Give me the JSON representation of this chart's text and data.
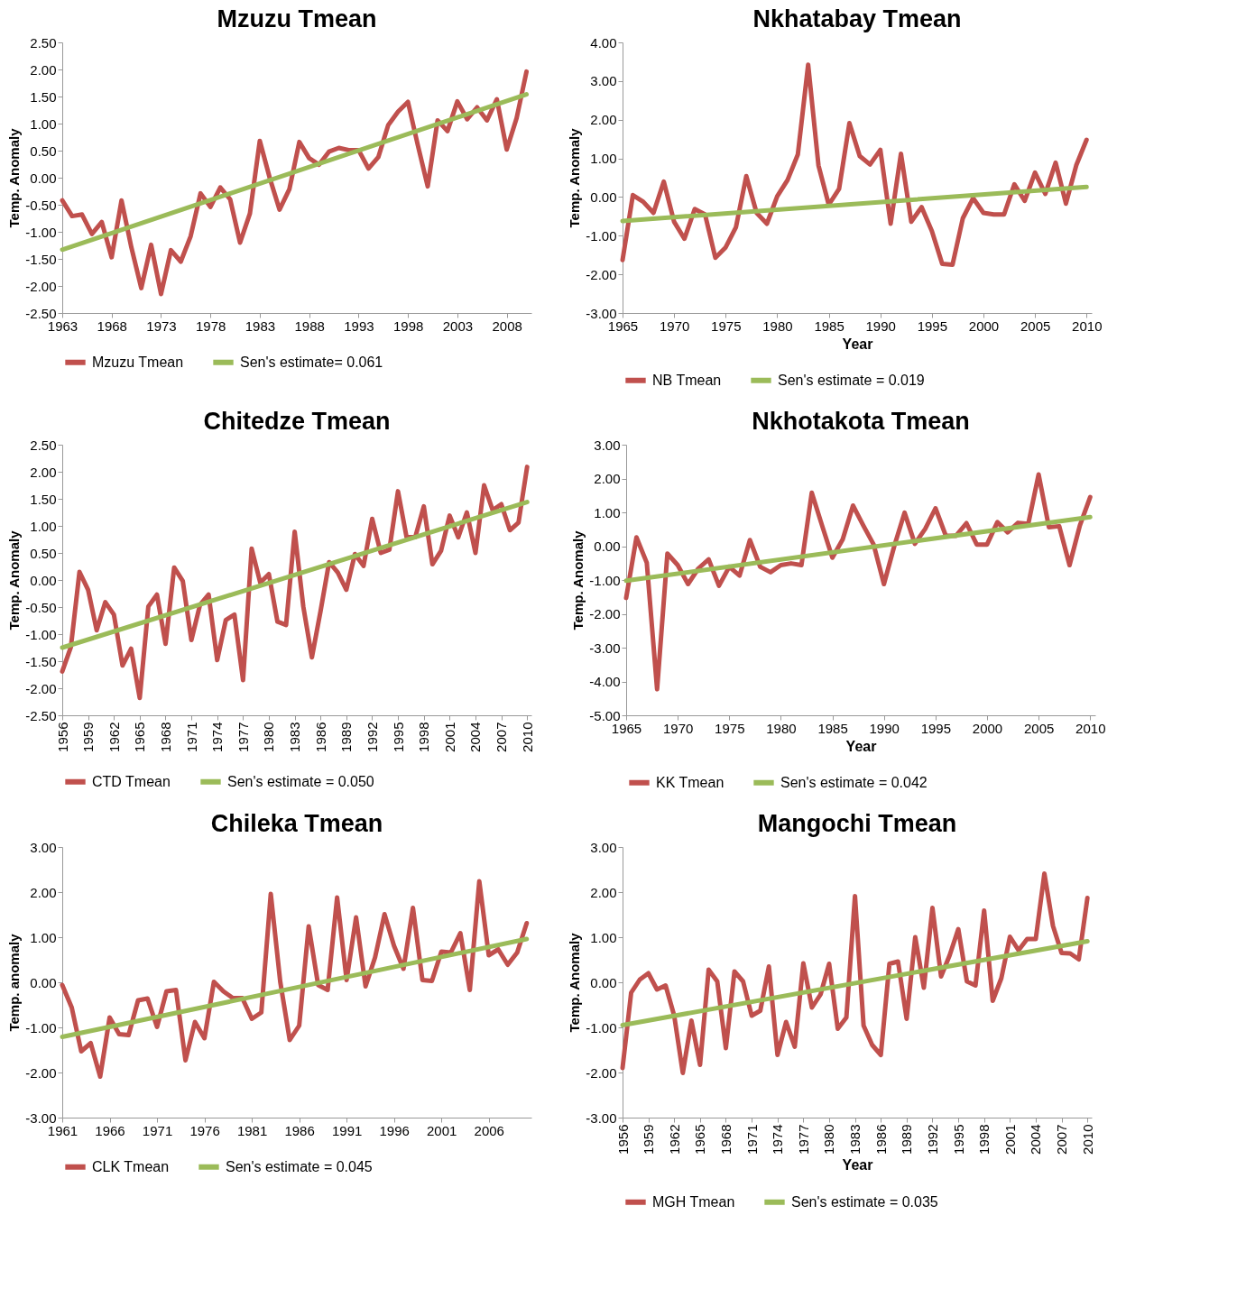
{
  "chart_data": [
    {
      "type": "line",
      "title": "Mzuzu Tmean",
      "ylabel": "Temp. Anomaly",
      "legend": "bottom",
      "grid": false,
      "x": [
        1963,
        1964,
        1965,
        1966,
        1967,
        1968,
        1969,
        1970,
        1971,
        1972,
        1973,
        1974,
        1975,
        1976,
        1977,
        1978,
        1979,
        1980,
        1981,
        1982,
        1983,
        1984,
        1985,
        1986,
        1987,
        1988,
        1989,
        1990,
        1991,
        1992,
        1993,
        1994,
        1995,
        1996,
        1997,
        1998,
        1999,
        2000,
        2001,
        2002,
        2003,
        2004,
        2005,
        2006,
        2007,
        2008,
        2009,
        2010
      ],
      "xlim": [
        1963,
        2010.5
      ],
      "xticks": [
        1963,
        1968,
        1973,
        1978,
        1983,
        1988,
        1993,
        1998,
        2003,
        2008
      ],
      "ylim": [
        -2.5,
        2.5
      ],
      "yticks": [
        {
          "value": -2.5,
          "label": "-2.50"
        },
        {
          "value": -2,
          "label": "-2.00"
        },
        {
          "value": -1.5,
          "label": "-1.50"
        },
        {
          "value": -1,
          "label": "-1.00"
        },
        {
          "value": -0.5,
          "label": "-0.50"
        },
        {
          "value": 0,
          "label": "0.00"
        },
        {
          "value": 0.5,
          "label": "0.50"
        },
        {
          "value": 1,
          "label": "1.00"
        },
        {
          "value": 1.5,
          "label": "1.50"
        },
        {
          "value": 2,
          "label": "2.00"
        },
        {
          "value": 2.5,
          "label": "2.50"
        }
      ],
      "series": [
        {
          "name": "Mzuzu Tmean",
          "color": "#c0504d",
          "values": [
            -0.42,
            -0.71,
            -0.68,
            -1.04,
            -0.82,
            -1.47,
            -0.42,
            -1.29,
            -2.04,
            -1.24,
            -2.15,
            -1.34,
            -1.55,
            -1.08,
            -0.29,
            -0.54,
            -0.18,
            -0.4,
            -1.2,
            -0.66,
            0.68,
            0.0,
            -0.59,
            -0.21,
            0.66,
            0.36,
            0.24,
            0.48,
            0.55,
            0.51,
            0.51,
            0.17,
            0.38,
            0.97,
            1.22,
            1.4,
            0.6,
            -0.16,
            1.06,
            0.86,
            1.41,
            1.08,
            1.3,
            1.06,
            1.45,
            0.52,
            1.1,
            1.96
          ]
        },
        {
          "name": "Sen's estimate= 0.061",
          "color": "#9bbb59",
          "type": "line",
          "x": [
            1963,
            2010
          ],
          "values": [
            -1.33,
            1.54
          ]
        }
      ]
    },
    {
      "type": "line",
      "title": "Nkhatabay Tmean",
      "ylabel": "Temp. Anomaly",
      "xlabel": "Year",
      "legend": "bottom",
      "grid": false,
      "x": [
        1965,
        1966,
        1967,
        1968,
        1969,
        1970,
        1971,
        1972,
        1973,
        1974,
        1975,
        1976,
        1977,
        1978,
        1979,
        1980,
        1981,
        1982,
        1983,
        1984,
        1985,
        1986,
        1987,
        1988,
        1989,
        1990,
        1991,
        1992,
        1993,
        1994,
        1995,
        1996,
        1997,
        1998,
        1999,
        2000,
        2001,
        2002,
        2003,
        2004,
        2005,
        2006,
        2007,
        2008,
        2009,
        2010
      ],
      "xlim": [
        1965,
        2010.5
      ],
      "xticks": [
        1965,
        1970,
        1975,
        1980,
        1985,
        1990,
        1995,
        2000,
        2005,
        2010
      ],
      "ylim": [
        -3,
        4
      ],
      "yticks": [
        {
          "value": -3,
          "label": "-3.00"
        },
        {
          "value": -2,
          "label": "-2.00"
        },
        {
          "value": -1,
          "label": "-1.00"
        },
        {
          "value": 0,
          "label": "0.00"
        },
        {
          "value": 1,
          "label": "1.00"
        },
        {
          "value": 2,
          "label": "2.00"
        },
        {
          "value": 3,
          "label": "3.00"
        },
        {
          "value": 4,
          "label": "4.00"
        }
      ],
      "series": [
        {
          "name": "NB Tmean",
          "color": "#c0504d",
          "values": [
            -1.63,
            0.05,
            -0.12,
            -0.41,
            0.4,
            -0.64,
            -1.08,
            -0.31,
            -0.45,
            -1.57,
            -1.3,
            -0.78,
            0.54,
            -0.41,
            -0.69,
            0.02,
            0.44,
            1.1,
            3.42,
            0.82,
            -0.2,
            0.21,
            1.91,
            1.06,
            0.84,
            1.22,
            -0.69,
            1.12,
            -0.64,
            -0.26,
            -0.88,
            -1.73,
            -1.75,
            -0.55,
            -0.03,
            -0.41,
            -0.45,
            -0.45,
            0.33,
            -0.1,
            0.63,
            0.08,
            0.89,
            -0.17,
            0.82,
            1.48
          ]
        },
        {
          "name": "Sen's estimate = 0.019",
          "color": "#9bbb59",
          "type": "line",
          "x": [
            1965,
            2010
          ],
          "values": [
            -0.62,
            0.26
          ]
        }
      ]
    },
    {
      "type": "line",
      "title": "Chitedze Tmean",
      "ylabel": "Temp. Anomaly",
      "legend": "bottom",
      "grid": false,
      "x": [
        1956,
        1957,
        1958,
        1959,
        1960,
        1961,
        1962,
        1963,
        1964,
        1965,
        1966,
        1967,
        1968,
        1969,
        1970,
        1971,
        1972,
        1973,
        1974,
        1975,
        1976,
        1977,
        1978,
        1979,
        1980,
        1981,
        1982,
        1983,
        1984,
        1985,
        1986,
        1987,
        1988,
        1989,
        1990,
        1991,
        1992,
        1993,
        1994,
        1995,
        1996,
        1997,
        1998,
        1999,
        2000,
        2001,
        2002,
        2003,
        2004,
        2005,
        2006,
        2007,
        2008,
        2009,
        2010
      ],
      "xlim": [
        1956,
        2010.5
      ],
      "xticks": [
        1956,
        1959,
        1962,
        1965,
        1968,
        1971,
        1974,
        1977,
        1980,
        1983,
        1986,
        1989,
        1992,
        1995,
        1998,
        2001,
        2004,
        2007,
        2010
      ],
      "ylim": [
        -2.5,
        2.5
      ],
      "yticks": [
        {
          "value": -2.5,
          "label": "-2.50"
        },
        {
          "value": -2,
          "label": "-2.00"
        },
        {
          "value": -1.5,
          "label": "-1.50"
        },
        {
          "value": -1,
          "label": "-1.00"
        },
        {
          "value": -0.5,
          "label": "-0.50"
        },
        {
          "value": 0,
          "label": "0.00"
        },
        {
          "value": 0.5,
          "label": "0.50"
        },
        {
          "value": 1,
          "label": "1.00"
        },
        {
          "value": 1.5,
          "label": "1.50"
        },
        {
          "value": 2,
          "label": "2.00"
        },
        {
          "value": 2.5,
          "label": "2.50"
        }
      ],
      "series": [
        {
          "name": "CTD Tmean",
          "color": "#c0504d",
          "values": [
            -1.69,
            -1.24,
            0.15,
            -0.18,
            -0.93,
            -0.41,
            -0.64,
            -1.58,
            -1.27,
            -2.18,
            -0.49,
            -0.27,
            -1.18,
            0.23,
            -0.02,
            -1.11,
            -0.46,
            -0.27,
            -1.48,
            -0.74,
            -0.64,
            -1.85,
            0.58,
            -0.05,
            0.11,
            -0.77,
            -0.83,
            0.89,
            -0.49,
            -1.43,
            -0.58,
            0.33,
            0.14,
            -0.18,
            0.48,
            0.26,
            1.13,
            0.5,
            0.56,
            1.64,
            0.79,
            0.79,
            1.36,
            0.29,
            0.54,
            1.19,
            0.79,
            1.25,
            0.5,
            1.75,
            1.29,
            1.4,
            0.92,
            1.06,
            2.09
          ]
        },
        {
          "name": "Sen's estimate = 0.050",
          "color": "#9bbb59",
          "type": "line",
          "x": [
            1956,
            2010
          ],
          "values": [
            -1.25,
            1.44
          ]
        }
      ]
    },
    {
      "type": "line",
      "title": "Nkhotakota Tmean",
      "ylabel": "Temp. Anomaly",
      "xlabel": "Year",
      "legend": "bottom",
      "grid": false,
      "x": [
        1965,
        1966,
        1967,
        1968,
        1969,
        1970,
        1971,
        1972,
        1973,
        1974,
        1975,
        1976,
        1977,
        1978,
        1979,
        1980,
        1981,
        1982,
        1983,
        1984,
        1985,
        1986,
        1987,
        1988,
        1989,
        1990,
        1991,
        1992,
        1993,
        1994,
        1995,
        1996,
        1997,
        1998,
        1999,
        2000,
        2001,
        2002,
        2003,
        2004,
        2005,
        2006,
        2007,
        2008,
        2009,
        2010
      ],
      "xlim": [
        1965,
        2010.5
      ],
      "xticks": [
        1965,
        1970,
        1975,
        1980,
        1985,
        1990,
        1995,
        2000,
        2005,
        2010
      ],
      "ylim": [
        -5,
        3
      ],
      "yticks": [
        {
          "value": -5,
          "label": "-5.00"
        },
        {
          "value": -4,
          "label": "-4.00"
        },
        {
          "value": -3,
          "label": "-3.00"
        },
        {
          "value": -2,
          "label": "-2.00"
        },
        {
          "value": -1,
          "label": "-1.00"
        },
        {
          "value": 0,
          "label": "0.00"
        },
        {
          "value": 1,
          "label": "1.00"
        },
        {
          "value": 2,
          "label": "2.00"
        },
        {
          "value": 3,
          "label": "3.00"
        }
      ],
      "series": [
        {
          "name": "KK Tmean",
          "color": "#c0504d",
          "values": [
            -1.53,
            0.26,
            -0.49,
            -4.23,
            -0.22,
            -0.56,
            -1.12,
            -0.66,
            -0.39,
            -1.17,
            -0.61,
            -0.87,
            0.18,
            -0.61,
            -0.77,
            -0.56,
            -0.51,
            -0.56,
            1.58,
            0.61,
            -0.34,
            0.2,
            1.2,
            0.61,
            0.05,
            -1.12,
            0.0,
            0.99,
            0.07,
            0.51,
            1.12,
            0.31,
            0.31,
            0.68,
            0.05,
            0.05,
            0.71,
            0.41,
            0.69,
            0.66,
            2.12,
            0.56,
            0.59,
            -0.56,
            0.61,
            1.45
          ]
        },
        {
          "name": "Sen's estimate = 0.042",
          "color": "#9bbb59",
          "type": "line",
          "x": [
            1965,
            2010
          ],
          "values": [
            -1.02,
            0.86
          ]
        }
      ]
    },
    {
      "type": "line",
      "title": "Chileka Tmean",
      "ylabel": "Temp. anomaly",
      "legend": "bottom",
      "grid": false,
      "x": [
        1961,
        1962,
        1963,
        1964,
        1965,
        1966,
        1967,
        1968,
        1969,
        1970,
        1971,
        1972,
        1973,
        1974,
        1975,
        1976,
        1977,
        1978,
        1979,
        1980,
        1981,
        1982,
        1983,
        1984,
        1985,
        1986,
        1987,
        1988,
        1989,
        1990,
        1991,
        1992,
        1993,
        1994,
        1995,
        1996,
        1997,
        1998,
        1999,
        2000,
        2001,
        2002,
        2003,
        2004,
        2005,
        2006,
        2007,
        2008,
        2009,
        2010
      ],
      "xlim": [
        1961,
        2010.5
      ],
      "xticks": [
        1961,
        1966,
        1971,
        1976,
        1981,
        1986,
        1991,
        1996,
        2001,
        2006
      ],
      "ylim": [
        -3,
        3
      ],
      "yticks": [
        {
          "value": -3,
          "label": "-3.00"
        },
        {
          "value": -2,
          "label": "-2.00"
        },
        {
          "value": -1,
          "label": "-1.00"
        },
        {
          "value": 0,
          "label": "0.00"
        },
        {
          "value": 1,
          "label": "1.00"
        },
        {
          "value": 2,
          "label": "2.00"
        },
        {
          "value": 3,
          "label": "3.00"
        }
      ],
      "series": [
        {
          "name": "CLK Tmean",
          "color": "#c0504d",
          "values": [
            -0.06,
            -0.56,
            -1.53,
            -1.35,
            -2.09,
            -0.78,
            -1.15,
            -1.17,
            -0.4,
            -0.36,
            -0.99,
            -0.2,
            -0.17,
            -1.73,
            -0.88,
            -1.24,
            0.01,
            -0.2,
            -0.35,
            -0.35,
            -0.81,
            -0.67,
            1.96,
            0.01,
            -1.28,
            -0.96,
            1.24,
            -0.06,
            -0.17,
            1.88,
            0.05,
            1.44,
            -0.09,
            0.55,
            1.51,
            0.81,
            0.3,
            1.65,
            0.05,
            0.03,
            0.68,
            0.66,
            1.09,
            -0.17,
            2.24,
            0.6,
            0.73,
            0.39,
            0.66,
            1.31
          ]
        },
        {
          "name": "Sen's estimate = 0.045",
          "color": "#9bbb59",
          "type": "line",
          "x": [
            1961,
            2010
          ],
          "values": [
            -1.21,
            0.96
          ]
        }
      ]
    },
    {
      "type": "line",
      "title": "Mangochi Tmean",
      "ylabel": "Temp. Anomaly",
      "xlabel": "Year",
      "legend": "bottom",
      "grid": false,
      "x": [
        1956,
        1957,
        1958,
        1959,
        1960,
        1961,
        1962,
        1963,
        1964,
        1965,
        1966,
        1967,
        1968,
        1969,
        1970,
        1971,
        1972,
        1973,
        1974,
        1975,
        1976,
        1977,
        1978,
        1979,
        1980,
        1981,
        1982,
        1983,
        1984,
        1985,
        1986,
        1987,
        1988,
        1989,
        1990,
        1991,
        1992,
        1993,
        1994,
        1995,
        1996,
        1997,
        1998,
        1999,
        2000,
        2001,
        2002,
        2003,
        2004,
        2005,
        2006,
        2007,
        2008,
        2009,
        2010
      ],
      "xlim": [
        1956,
        2010.5
      ],
      "xticks": [
        1956,
        1959,
        1962,
        1965,
        1968,
        1971,
        1974,
        1977,
        1980,
        1983,
        1986,
        1989,
        1992,
        1995,
        1998,
        2001,
        2004,
        2007,
        2010
      ],
      "ylim": [
        -3,
        3
      ],
      "yticks": [
        {
          "value": -3,
          "label": "-3.00"
        },
        {
          "value": -2,
          "label": "-2.00"
        },
        {
          "value": -1,
          "label": "-1.00"
        },
        {
          "value": 0,
          "label": "0.00"
        },
        {
          "value": 1,
          "label": "1.00"
        },
        {
          "value": 2,
          "label": "2.00"
        },
        {
          "value": 3,
          "label": "3.00"
        }
      ],
      "series": [
        {
          "name": "MGH Tmean",
          "color": "#c0504d",
          "values": [
            -1.9,
            -0.23,
            0.06,
            0.2,
            -0.16,
            -0.07,
            -0.74,
            -2.01,
            -0.85,
            -1.83,
            0.28,
            0.02,
            -1.46,
            0.24,
            0.02,
            -0.74,
            -0.63,
            0.35,
            -1.61,
            -0.88,
            -1.43,
            0.42,
            -0.56,
            -0.27,
            0.41,
            -1.03,
            -0.78,
            1.91,
            -0.96,
            -1.39,
            -1.61,
            0.41,
            0.46,
            -0.81,
            1.0,
            -0.12,
            1.65,
            0.13,
            0.6,
            1.18,
            0.02,
            -0.07,
            1.59,
            -0.41,
            0.09,
            1.01,
            0.71,
            0.96,
            0.96,
            2.41,
            1.25,
            0.65,
            0.64,
            0.51,
            1.87
          ]
        },
        {
          "name": "Sen's estimate = 0.035",
          "color": "#9bbb59",
          "type": "line",
          "x": [
            1956,
            2010
          ],
          "values": [
            -0.95,
            0.91
          ]
        }
      ]
    }
  ]
}
